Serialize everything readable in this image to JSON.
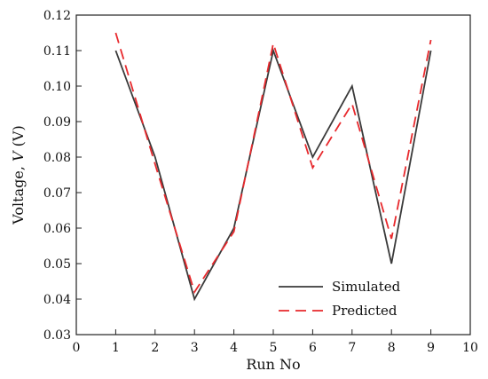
{
  "chart_data": {
    "type": "line",
    "xlabel": "Run No",
    "ylabel_prefix": "Voltage, ",
    "ylabel_symbol": "V",
    "ylabel_suffix": " (V)",
    "xlim": [
      0,
      10
    ],
    "ylim": [
      0.03,
      0.12
    ],
    "xticks": [
      "0",
      "1",
      "2",
      "3",
      "4",
      "5",
      "6",
      "7",
      "8",
      "9",
      "10"
    ],
    "yticks": [
      "0.03",
      "0.04",
      "0.05",
      "0.06",
      "0.07",
      "0.08",
      "0.09",
      "0.10",
      "0.11",
      "0.12"
    ],
    "legend_position": "bottom-right",
    "grid": false,
    "series": [
      {
        "name": "Simulated",
        "style": "solid",
        "color": "#3a3a3a",
        "x": [
          1,
          2,
          3,
          4,
          5,
          6,
          7,
          8,
          9
        ],
        "y": [
          0.11,
          0.08,
          0.04,
          0.06,
          0.11,
          0.08,
          0.1,
          0.05,
          0.11
        ]
      },
      {
        "name": "Predicted",
        "style": "dashed",
        "color": "#e8292d",
        "x": [
          1,
          2,
          3,
          4,
          5,
          6,
          7,
          8,
          9
        ],
        "y": [
          0.115,
          0.078,
          0.042,
          0.059,
          0.112,
          0.077,
          0.095,
          0.057,
          0.113
        ]
      }
    ]
  }
}
